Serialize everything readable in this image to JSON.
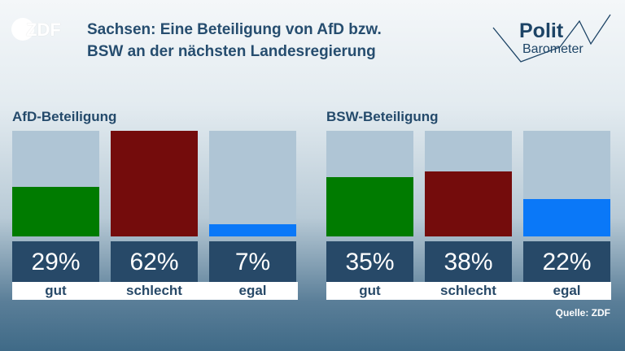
{
  "brand": {
    "logo_text": "ZDF",
    "politbarometer_line1": "Polit",
    "politbarometer_line2": "Barometer"
  },
  "title_lines": [
    "Sachsen: Eine Beteiligung von AfD bzw.",
    "BSW an der nächsten Landesregierung"
  ],
  "source": "Quelle: ZDF",
  "colors": {
    "gut": "#007b00",
    "schlecht": "#740c0c",
    "egal": "#0a78f8",
    "bar_background": "#afc5d5",
    "value_box": "#274968",
    "title": "#264d6f"
  },
  "chart_data": [
    {
      "type": "bar",
      "title": "AfD-Beteiligung",
      "categories": [
        "gut",
        "schlecht",
        "egal"
      ],
      "values": [
        29,
        62,
        7
      ],
      "value_labels": [
        "29%",
        "62%",
        "7%"
      ],
      "ylim": [
        0,
        62
      ]
    },
    {
      "type": "bar",
      "title": "BSW-Beteiligung",
      "categories": [
        "gut",
        "schlecht",
        "egal"
      ],
      "values": [
        35,
        38,
        22
      ],
      "value_labels": [
        "35%",
        "38%",
        "22%"
      ],
      "ylim": [
        0,
        62
      ]
    }
  ]
}
